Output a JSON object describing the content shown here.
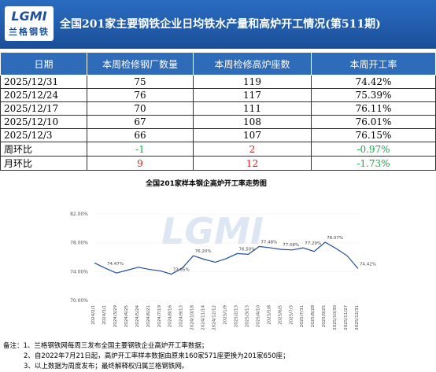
{
  "header": {
    "logo_text": "LGMI",
    "logo_name": "兰格钢铁",
    "title": "全国201家主要钢铁企业日均铁水产量和高炉开工情况(第511期)"
  },
  "table": {
    "columns": [
      "日期",
      "本周检修钢厂数量",
      "本周检修高炉座数",
      "本周开工率"
    ],
    "rows": [
      [
        "2025/12/31",
        "75",
        "119",
        "74.42%"
      ],
      [
        "2025/12/24",
        "76",
        "117",
        "75.39%"
      ],
      [
        "2025/12/17",
        "70",
        "111",
        "76.11%"
      ],
      [
        "2025/12/10",
        "67",
        "108",
        "76.01%"
      ],
      [
        "2025/12/3",
        "66",
        "107",
        "76.15%"
      ],
      [
        "周环比",
        "-1",
        "2",
        "-0.97%"
      ],
      [
        "月环比",
        "9",
        "12",
        "-1.73%"
      ]
    ]
  },
  "chart": {
    "type": "line",
    "title": "全国201家样本钢企高炉开工率走势图",
    "color": "#1f4e96",
    "categories": [
      "2024/2/1",
      "2024/3/1",
      "2024/3/29",
      "2024/4/25",
      "2024/5/24",
      "2024/6/21",
      "2024/7/19",
      "2024/8/16",
      "2024/9/13",
      "2024/10/18",
      "2024/11/14",
      "2024/12/12",
      "2025/1/9",
      "2025/2/13",
      "2025/3/13",
      "2025/4/10",
      "2025/5/8",
      "2025/6/5",
      "2025/7/3",
      "2025/7/31",
      "2025/8/28",
      "2025/9/25",
      "2025/10/30",
      "2025/11/27",
      "2025/12/31"
    ],
    "values": [
      75.2,
      74.47,
      73.8,
      74.2,
      74.6,
      74.3,
      74.1,
      73.65,
      74.5,
      76.2,
      75.7,
      75.3,
      75.8,
      76.5,
      76.4,
      77.48,
      77.3,
      77.08,
      77.0,
      77.29,
      76.8,
      78.07,
      77.2,
      76.2,
      74.42
    ],
    "value_labels": [
      null,
      "74.47%",
      null,
      null,
      null,
      null,
      null,
      "73.65%",
      null,
      "76.20%",
      null,
      null,
      null,
      "76.50%",
      null,
      "77.48%",
      null,
      "77.08%",
      null,
      "77.29%",
      null,
      "78.07%",
      null,
      null,
      "74.42%"
    ],
    "ylim": [
      70,
      82
    ],
    "yticks": [
      {
        "value": 70,
        "label": "70.00%"
      },
      {
        "value": 74,
        "label": "74.00%"
      },
      {
        "value": 78,
        "label": "78.00%"
      },
      {
        "value": 82,
        "label": "82.00%"
      }
    ]
  },
  "notes": [
    "备注：1、兰格钢铁网每周三发布全国主要钢铁企业高炉开工率数据；",
    "2、自2022年7月21日起，高炉开工率样本数据由原来160家571座更换为201家650座；",
    "3、以上数据为周度发布；最终解释权归属兰格钢铁网。"
  ]
}
